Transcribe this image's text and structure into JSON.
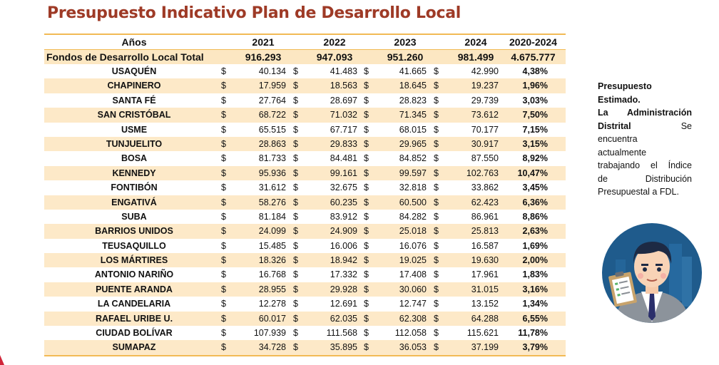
{
  "title": "Presupuesto Indicativo Plan de Desarrollo Local",
  "table": {
    "headers": [
      "Años",
      "2021",
      "2022",
      "2023",
      "2024",
      "2020-2024"
    ],
    "currency_symbol": "$",
    "total": {
      "label": "Fondos de Desarrollo Local Total",
      "values": [
        "916.293",
        "947.093",
        "951.260",
        "981.499"
      ],
      "pct": "4.675.777"
    },
    "rows": [
      {
        "name": "USAQUÉN",
        "values": [
          "40.134",
          "41.483",
          "41.665",
          "42.990"
        ],
        "pct": "4,38%"
      },
      {
        "name": "CHAPINERO",
        "values": [
          "17.959",
          "18.563",
          "18.645",
          "19.237"
        ],
        "pct": "1,96%"
      },
      {
        "name": "SANTA FÉ",
        "values": [
          "27.764",
          "28.697",
          "28.823",
          "29.739"
        ],
        "pct": "3,03%"
      },
      {
        "name": "SAN CRISTÓBAL",
        "values": [
          "68.722",
          "71.032",
          "71.345",
          "73.612"
        ],
        "pct": "7,50%"
      },
      {
        "name": "USME",
        "values": [
          "65.515",
          "67.717",
          "68.015",
          "70.177"
        ],
        "pct": "7,15%"
      },
      {
        "name": "TUNJUELITO",
        "values": [
          "28.863",
          "29.833",
          "29.965",
          "30.917"
        ],
        "pct": "3,15%"
      },
      {
        "name": "BOSA",
        "values": [
          "81.733",
          "84.481",
          "84.852",
          "87.550"
        ],
        "pct": "8,92%"
      },
      {
        "name": "KENNEDY",
        "values": [
          "95.936",
          "99.161",
          "99.597",
          "102.763"
        ],
        "pct": "10,47%"
      },
      {
        "name": "FONTIBÓN",
        "values": [
          "31.612",
          "32.675",
          "32.818",
          "33.862"
        ],
        "pct": "3,45%"
      },
      {
        "name": "ENGATIVÁ",
        "values": [
          "58.276",
          "60.235",
          "60.500",
          "62.423"
        ],
        "pct": "6,36%"
      },
      {
        "name": "SUBA",
        "values": [
          "81.184",
          "83.912",
          "84.282",
          "86.961"
        ],
        "pct": "8,86%"
      },
      {
        "name": "BARRIOS UNIDOS",
        "values": [
          "24.099",
          "24.909",
          "25.018",
          "25.813"
        ],
        "pct": "2,63%"
      },
      {
        "name": "TEUSAQUILLO",
        "values": [
          "15.485",
          "16.006",
          "16.076",
          "16.587"
        ],
        "pct": "1,69%"
      },
      {
        "name": "LOS MÁRTIRES",
        "values": [
          "18.326",
          "18.942",
          "19.025",
          "19.630"
        ],
        "pct": "2,00%"
      },
      {
        "name": "ANTONIO NARIÑO",
        "values": [
          "16.768",
          "17.332",
          "17.408",
          "17.961"
        ],
        "pct": "1,83%"
      },
      {
        "name": "PUENTE ARANDA",
        "values": [
          "28.955",
          "29.928",
          "30.060",
          "31.015"
        ],
        "pct": "3,16%"
      },
      {
        "name": "LA CANDELARIA",
        "values": [
          "12.278",
          "12.691",
          "12.747",
          "13.152"
        ],
        "pct": "1,34%"
      },
      {
        "name": "RAFAEL URIBE U.",
        "values": [
          "60.017",
          "62.035",
          "62.308",
          "64.288"
        ],
        "pct": "6,55%"
      },
      {
        "name": "CIUDAD BOLÍVAR",
        "values": [
          "107.939",
          "111.568",
          "112.058",
          "115.621"
        ],
        "pct": "11,78%"
      },
      {
        "name": "SUMAPAZ",
        "values": [
          "34.728",
          "35.895",
          "36.053",
          "37.199"
        ],
        "pct": "3,79%"
      }
    ]
  },
  "note": {
    "line1": "Presupuesto",
    "line2": "Estimado.",
    "line3": "La Administración",
    "line4a": "Distrital",
    "line4b": "Se",
    "line5": "encuentra",
    "line6": "actualmente",
    "line7": "trabajando el Índice",
    "line8": "de Distribución",
    "line9": "Presupuestal a FDL."
  },
  "colors": {
    "title": "#9e3a26",
    "band": "#fde9c8",
    "rule": "#f2ba55",
    "avatar_bg": "#1f5b8c"
  },
  "icons": {
    "avatar": "businessman-with-clipboard-icon"
  }
}
